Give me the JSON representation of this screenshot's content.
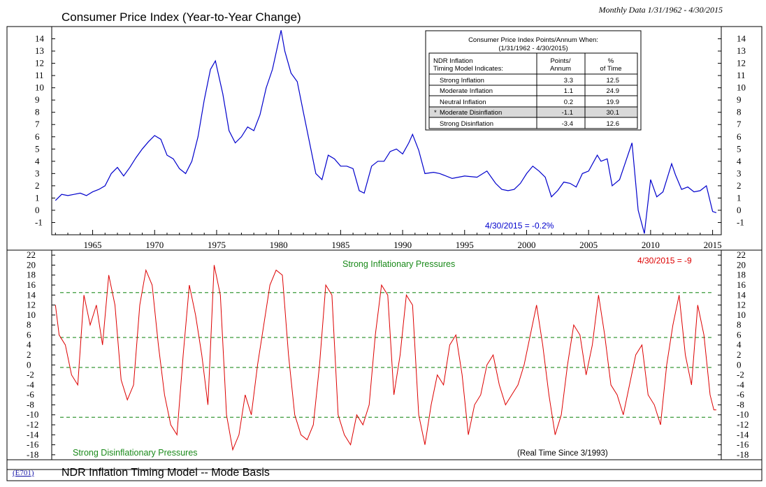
{
  "header": {
    "title": "Consumer Price Index (Year-to-Year Change)",
    "date_range": "Monthly Data 1/31/1962 - 4/30/2015"
  },
  "footer": {
    "code": "(E701)",
    "title": "NDR Inflation Timing Model -- Mode Basis"
  },
  "summary_table": {
    "title_line1": "Consumer Price Index Points/Annum When:",
    "title_line2": "(1/31/1962 - 4/30/2015)",
    "col1_header_line1": "NDR Inflation",
    "col1_header_line2": "Timing Model Indicates:",
    "col2_header_line1": "Points/",
    "col2_header_line2": "Annum",
    "col3_header_line1": "%",
    "col3_header_line2": "of Time",
    "rows": [
      {
        "label": "Strong Inflation",
        "points": "3.3",
        "pct": "12.5",
        "current": false,
        "marker": ""
      },
      {
        "label": "Moderate Inflation",
        "points": "1.1",
        "pct": "24.9",
        "current": false,
        "marker": ""
      },
      {
        "label": "Neutral Inflation",
        "points": "0.2",
        "pct": "19.9",
        "current": false,
        "marker": ""
      },
      {
        "label": "Moderate Disinflation",
        "points": "-1.1",
        "pct": "30.1",
        "current": true,
        "marker": "*"
      },
      {
        "label": "Strong Disinflation",
        "points": "-3.4",
        "pct": "12.6",
        "current": false,
        "marker": ""
      }
    ]
  },
  "colors": {
    "cpi_line": "#0000cc",
    "model_line": "#dd0000",
    "threshold_line": "#3a9a3a",
    "zone_text": "#1a8a1a",
    "current_row": "#d9d9d9"
  },
  "chart_data": [
    {
      "type": "line",
      "series": [
        {
          "color": "#0000cc",
          "x": [
            1962.0,
            1962.5,
            1963.0,
            1963.5,
            1964.0,
            1964.5,
            1965.0,
            1965.5,
            1966.0,
            1966.5,
            1967.0,
            1967.5,
            1968.0,
            1968.5,
            1969.0,
            1969.5,
            1970.0,
            1970.5,
            1971.0,
            1971.5,
            1972.0,
            1972.5,
            1973.0,
            1973.5,
            1974.0,
            1974.5,
            1974.9,
            1975.5,
            1976.0,
            1976.5,
            1977.0,
            1977.5,
            1978.0,
            1978.5,
            1979.0,
            1979.5,
            1980.0,
            1980.2,
            1980.5,
            1981.0,
            1981.5,
            1982.0,
            1982.5,
            1983.0,
            1983.5,
            1984.0,
            1984.5,
            1985.0,
            1985.5,
            1986.0,
            1986.5,
            1986.9,
            1987.5,
            1988.0,
            1988.5,
            1989.0,
            1989.5,
            1990.0,
            1990.5,
            1990.8,
            1991.3,
            1991.8,
            1992.5,
            1993.0,
            1994.0,
            1995.0,
            1996.0,
            1996.8,
            1997.5,
            1998.0,
            1998.5,
            1999.0,
            1999.5,
            2000.0,
            2000.5,
            2001.0,
            2001.5,
            2002.0,
            2002.5,
            2003.0,
            2003.5,
            2004.0,
            2004.5,
            2005.0,
            2005.7,
            2006.0,
            2006.5,
            2006.9,
            2007.5,
            2008.0,
            2008.5,
            2009.0,
            2009.5,
            2010.0,
            2010.5,
            2011.0,
            2011.7,
            2012.0,
            2012.5,
            2013.0,
            2013.5,
            2014.0,
            2014.5,
            2015.0,
            2015.3
          ],
          "y": [
            0.8,
            1.3,
            1.2,
            1.3,
            1.4,
            1.2,
            1.5,
            1.7,
            2.0,
            3.0,
            3.5,
            2.8,
            3.5,
            4.3,
            5.0,
            5.6,
            6.1,
            5.8,
            4.5,
            4.2,
            3.4,
            3.0,
            4.0,
            6.0,
            9.0,
            11.5,
            12.2,
            9.5,
            6.5,
            5.5,
            6.0,
            6.8,
            6.5,
            7.8,
            10.0,
            11.5,
            13.8,
            14.7,
            13.0,
            11.2,
            10.5,
            8.0,
            5.5,
            3.0,
            2.5,
            4.5,
            4.2,
            3.6,
            3.6,
            3.4,
            1.6,
            1.4,
            3.6,
            4.0,
            4.0,
            4.8,
            5.0,
            4.6,
            5.5,
            6.2,
            4.9,
            3.0,
            3.1,
            3.0,
            2.6,
            2.8,
            2.7,
            3.2,
            2.2,
            1.7,
            1.6,
            1.7,
            2.2,
            3.0,
            3.6,
            3.2,
            2.7,
            1.1,
            1.6,
            2.3,
            2.2,
            1.9,
            3.0,
            3.2,
            4.5,
            4.0,
            4.2,
            2.0,
            2.5,
            4.0,
            5.5,
            0.0,
            -1.9,
            2.5,
            1.1,
            1.5,
            3.8,
            2.9,
            1.7,
            1.9,
            1.5,
            1.6,
            2.0,
            -0.1,
            -0.2
          ]
        }
      ],
      "xlim": [
        1961.7,
        2015.7
      ],
      "x_ticks": [
        1965,
        1970,
        1975,
        1980,
        1985,
        1990,
        1995,
        2000,
        2005,
        2010,
        2015
      ],
      "ylim": [
        -2,
        15
      ],
      "y_ticks": [
        14,
        13,
        12,
        11,
        10,
        9,
        8,
        7,
        6,
        5,
        4,
        3,
        2,
        1,
        0,
        -1
      ],
      "annotation": "4/30/2015 = -0.2%"
    },
    {
      "type": "line",
      "series": [
        {
          "color": "#dd0000",
          "x": [
            1962.0,
            1962.3,
            1962.8,
            1963.3,
            1963.8,
            1964.3,
            1964.8,
            1965.3,
            1965.8,
            1966.3,
            1966.8,
            1967.3,
            1967.8,
            1968.3,
            1968.8,
            1969.3,
            1969.8,
            1970.3,
            1970.8,
            1971.3,
            1971.8,
            1972.3,
            1972.8,
            1973.3,
            1973.8,
            1974.3,
            1974.8,
            1975.3,
            1975.8,
            1976.3,
            1976.8,
            1977.3,
            1977.8,
            1978.3,
            1978.8,
            1979.3,
            1979.8,
            1980.3,
            1980.8,
            1981.3,
            1981.8,
            1982.3,
            1982.8,
            1983.3,
            1983.8,
            1984.3,
            1984.8,
            1985.3,
            1985.8,
            1986.3,
            1986.8,
            1987.3,
            1987.8,
            1988.3,
            1988.8,
            1989.3,
            1989.8,
            1990.3,
            1990.8,
            1991.3,
            1991.8,
            1992.3,
            1992.8,
            1993.3,
            1993.8,
            1994.3,
            1994.8,
            1995.3,
            1995.8,
            1996.3,
            1996.8,
            1997.3,
            1997.8,
            1998.3,
            1998.8,
            1999.3,
            1999.8,
            2000.3,
            2000.8,
            2001.3,
            2001.8,
            2002.3,
            2002.8,
            2003.3,
            2003.8,
            2004.3,
            2004.8,
            2005.3,
            2005.8,
            2006.3,
            2006.8,
            2007.3,
            2007.8,
            2008.3,
            2008.8,
            2009.3,
            2009.8,
            2010.3,
            2010.8,
            2011.3,
            2011.8,
            2012.3,
            2012.8,
            2013.3,
            2013.8,
            2014.3,
            2014.8,
            2015.1,
            2015.3
          ],
          "y": [
            12,
            6,
            4,
            -2,
            -4,
            14,
            8,
            12,
            4,
            18,
            12,
            -3,
            -7,
            -4,
            12,
            19,
            16,
            4,
            -6,
            -12,
            -14,
            2,
            16,
            10,
            2,
            -8,
            20,
            14,
            -10,
            -17,
            -14,
            -6,
            -10,
            0,
            8,
            16,
            19,
            18,
            2,
            -10,
            -14,
            -15,
            -12,
            0,
            16,
            14,
            -10,
            -14,
            -16,
            -10,
            -12,
            -8,
            6,
            16,
            14,
            -6,
            2,
            14,
            12,
            -10,
            -16,
            -8,
            -2,
            -4,
            4,
            6,
            -2,
            -14,
            -8,
            -6,
            0,
            2,
            -4,
            -8,
            -6,
            -4,
            0,
            6,
            12,
            4,
            -6,
            -14,
            -10,
            0,
            8,
            6,
            -2,
            4,
            14,
            6,
            -4,
            -6,
            -10,
            -4,
            2,
            4,
            -6,
            -8,
            -12,
            0,
            8,
            14,
            2,
            -4,
            12,
            6,
            -6,
            -9,
            -9
          ]
        }
      ],
      "xlim": [
        1961.7,
        2015.7
      ],
      "ylim": [
        -19,
        23
      ],
      "y_ticks": [
        22,
        20,
        18,
        16,
        14,
        12,
        10,
        8,
        6,
        4,
        2,
        0,
        -2,
        -4,
        -6,
        -8,
        -10,
        -12,
        -14,
        -16,
        -18
      ],
      "thresholds": [
        14.5,
        5.5,
        -0.5,
        -10.5
      ],
      "annotation": "4/30/2015 = -9",
      "zone_top": "Strong Inflationary Pressures",
      "zone_bottom": "Strong Disinflationary Pressures",
      "note": "(Real Time Since 3/1993)"
    }
  ]
}
